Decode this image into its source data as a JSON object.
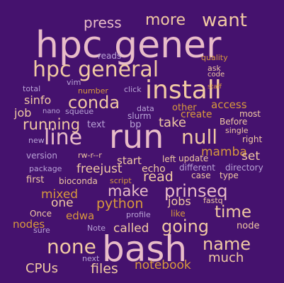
{
  "background": "#45126e",
  "palette": {
    "peach": "#f1c9a3",
    "orange": "#d99a3c",
    "lilac": "#b9a3d6",
    "pink": "#e8bcc8"
  },
  "words": [
    {
      "text": "press",
      "color": "#e8bcc8"
    },
    {
      "text": "more",
      "color": "#f1c9a3"
    },
    {
      "text": "want",
      "color": "#f1c9a3"
    },
    {
      "text": "hpc gener",
      "color": "#e8bcc8"
    },
    {
      "text": "reads",
      "color": "#b9a3d6"
    },
    {
      "text": "quality",
      "color": "#d99a3c"
    },
    {
      "text": "hpc general",
      "color": "#f1c9a3"
    },
    {
      "text": "ask",
      "color": "#f1c9a3"
    },
    {
      "text": "code",
      "color": "#f1c9a3"
    },
    {
      "text": "vim",
      "color": "#b9a3d6"
    },
    {
      "text": "total",
      "color": "#b9a3d6"
    },
    {
      "text": "number",
      "color": "#d99a3c"
    },
    {
      "text": "click",
      "color": "#b9a3d6"
    },
    {
      "text": "install",
      "color": "#f1c9a3"
    },
    {
      "text": "staff",
      "color": "#d99a3c"
    },
    {
      "text": "sinfo",
      "color": "#f1c9a3"
    },
    {
      "text": "conda",
      "color": "#f1c9a3"
    },
    {
      "text": "access",
      "color": "#d99a3c"
    },
    {
      "text": "nano",
      "color": "#b9a3d6"
    },
    {
      "text": "squeue",
      "color": "#b9a3d6"
    },
    {
      "text": "data",
      "color": "#b9a3d6"
    },
    {
      "text": "other",
      "color": "#d99a3c"
    },
    {
      "text": "most",
      "color": "#f1c9a3"
    },
    {
      "text": "job",
      "color": "#f1c9a3"
    },
    {
      "text": "slurm",
      "color": "#b9a3d6"
    },
    {
      "text": "create",
      "color": "#d99a3c"
    },
    {
      "text": "running",
      "color": "#f1c9a3"
    },
    {
      "text": "text",
      "color": "#b9a3d6"
    },
    {
      "text": "bp",
      "color": "#b9a3d6"
    },
    {
      "text": "take",
      "color": "#f1c9a3"
    },
    {
      "text": "Before",
      "color": "#f1c9a3"
    },
    {
      "text": "single",
      "color": "#f1c9a3"
    },
    {
      "text": "new",
      "color": "#b9a3d6"
    },
    {
      "text": "line",
      "color": "#e8bcc8"
    },
    {
      "text": "run",
      "color": "#e8bcc8"
    },
    {
      "text": "null",
      "color": "#f1c9a3"
    },
    {
      "text": "right",
      "color": "#f1c9a3"
    },
    {
      "text": "mamba",
      "color": "#d99a3c"
    },
    {
      "text": "version",
      "color": "#b9a3d6"
    },
    {
      "text": "rw-r--r",
      "color": "#f1c9a3"
    },
    {
      "text": "start",
      "color": "#f1c9a3"
    },
    {
      "text": "left",
      "color": "#f1c9a3"
    },
    {
      "text": "update",
      "color": "#f1c9a3"
    },
    {
      "text": "set",
      "color": "#f1c9a3"
    },
    {
      "text": "package",
      "color": "#b9a3d6"
    },
    {
      "text": "freejust",
      "color": "#f1c9a3"
    },
    {
      "text": "echo",
      "color": "#f1c9a3"
    },
    {
      "text": "different",
      "color": "#b9a3d6"
    },
    {
      "text": "directory",
      "color": "#b9a3d6"
    },
    {
      "text": "first",
      "color": "#f1c9a3"
    },
    {
      "text": "bioconda",
      "color": "#f1c9a3"
    },
    {
      "text": "script",
      "color": "#d99a3c"
    },
    {
      "text": "read",
      "color": "#f1c9a3"
    },
    {
      "text": "case",
      "color": "#f1c9a3"
    },
    {
      "text": "type",
      "color": "#f1c9a3"
    },
    {
      "text": "mixed",
      "color": "#d99a3c"
    },
    {
      "text": "make",
      "color": "#e8bcc8"
    },
    {
      "text": "prinseq",
      "color": "#e8bcc8"
    },
    {
      "text": "one",
      "color": "#f1c9a3"
    },
    {
      "text": "python",
      "color": "#d99a3c"
    },
    {
      "text": "jobs",
      "color": "#f1c9a3"
    },
    {
      "text": "fastq",
      "color": "#f1c9a3"
    },
    {
      "text": "time",
      "color": "#f1c9a3"
    },
    {
      "text": "Once",
      "color": "#f1c9a3"
    },
    {
      "text": "edwa",
      "color": "#d99a3c"
    },
    {
      "text": "profile",
      "color": "#b9a3d6"
    },
    {
      "text": "like",
      "color": "#d99a3c"
    },
    {
      "text": "nodes",
      "color": "#d99a3c"
    },
    {
      "text": "going",
      "color": "#f1c9a3"
    },
    {
      "text": "node",
      "color": "#f1c9a3"
    },
    {
      "text": "sure",
      "color": "#b9a3d6"
    },
    {
      "text": "Note",
      "color": "#b9a3d6"
    },
    {
      "text": "called",
      "color": "#f1c9a3"
    },
    {
      "text": "none",
      "color": "#f1c9a3"
    },
    {
      "text": "bash",
      "color": "#e8bcc8"
    },
    {
      "text": "name",
      "color": "#f1c9a3"
    },
    {
      "text": "much",
      "color": "#f1c9a3"
    },
    {
      "text": "next",
      "color": "#b9a3d6"
    },
    {
      "text": "CPUs",
      "color": "#f1c9a3"
    },
    {
      "text": "files",
      "color": "#f1c9a3"
    },
    {
      "text": "notebook",
      "color": "#d99a3c"
    }
  ]
}
